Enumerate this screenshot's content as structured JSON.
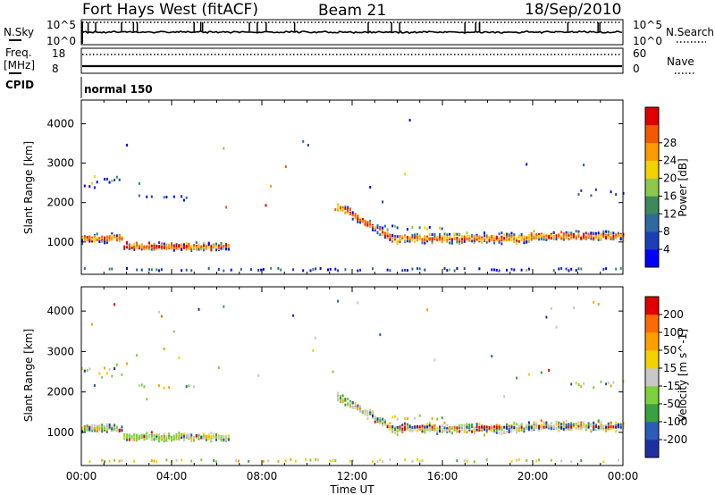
{
  "header": {
    "title": "Fort Hays West (fitACF)",
    "beam": "Beam 21",
    "date": "18/Sep/2010"
  },
  "top_panels": {
    "nsky_label": "N.Sky",
    "nsearch_label": "N.Search",
    "nsky_ticks": [
      "10^5",
      "10^0"
    ],
    "nsearch_ticks": [
      "10^5",
      "10^0"
    ],
    "freq_label": "Freq.",
    "freq_unit": "[MHz]",
    "freq_ticks": [
      "18",
      "8"
    ],
    "nave_label": "Nave",
    "nave_ticks": [
      "60",
      "0"
    ],
    "cpid_label": "CPID",
    "cpid_value": "normal 150"
  },
  "chart_data": [
    {
      "type": "heatmap",
      "name": "power",
      "ylabel": "Slant Range [km]",
      "x_ticks": [
        "00:00",
        "04:00",
        "08:00",
        "12:00",
        "16:00",
        "20:00",
        "00:00"
      ],
      "y_ticks": [
        1000,
        2000,
        3000,
        4000
      ],
      "xlim_hours": [
        0,
        24
      ],
      "ylim_km": [
        180,
        4600
      ],
      "colorbar": {
        "label": "Power [dB]",
        "ticks": [
          "4",
          "8",
          "12",
          "16",
          "20",
          "24",
          "28"
        ],
        "colors": [
          "#0000ff",
          "#1a3fb8",
          "#2e6a9e",
          "#3c8a5c",
          "#8cc84a",
          "#f2d200",
          "#ff9900",
          "#f25a00",
          "#e00000"
        ]
      }
    },
    {
      "type": "heatmap",
      "name": "velocity",
      "ylabel": "Slant Range [km]",
      "x_ticks": [
        "00:00",
        "04:00",
        "08:00",
        "12:00",
        "16:00",
        "20:00",
        "00:00"
      ],
      "y_ticks": [
        1000,
        2000,
        3000,
        4000
      ],
      "xlim_hours": [
        0,
        24
      ],
      "ylim_km": [
        180,
        4600
      ],
      "xlabel": "Time UT",
      "colorbar": {
        "label": "Velocity [m s^-1]",
        "ticks": [
          "200",
          "100",
          "50",
          "15",
          "-15",
          "-50",
          "-100",
          "-200"
        ],
        "colors": [
          "#1f2fa0",
          "#2a5db8",
          "#3aa040",
          "#7ed03c",
          "#c8c8c8",
          "#f2d200",
          "#ffa000",
          "#ff6a00",
          "#e00000"
        ]
      }
    }
  ]
}
